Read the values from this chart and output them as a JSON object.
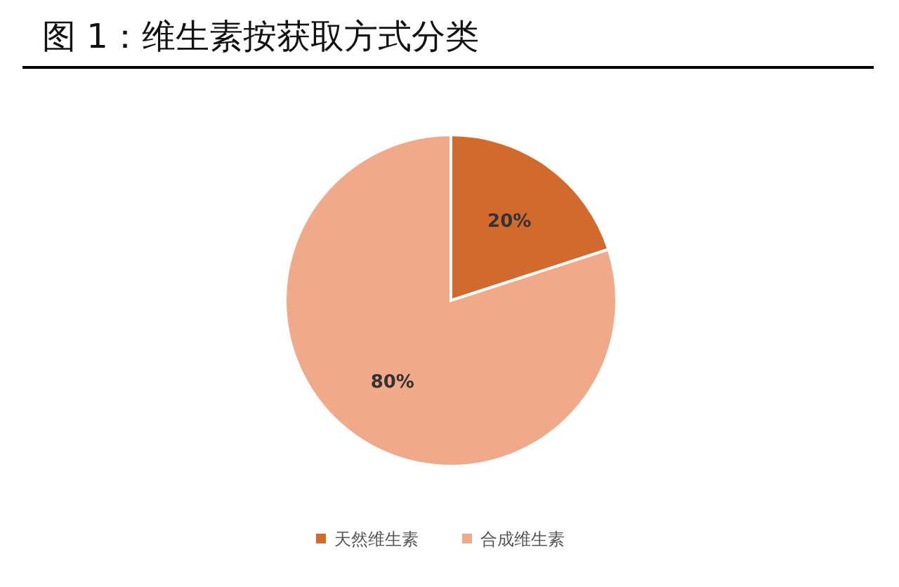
{
  "chart_data": {
    "type": "pie",
    "title": "图 1：维生素按获取方式分类",
    "categories": [
      "天然维生素",
      "合成维生素"
    ],
    "values": [
      20,
      80
    ],
    "colors": [
      "#d2692d",
      "#f0aa8a"
    ],
    "value_labels": [
      "20%",
      "80%"
    ],
    "legend": "bottom"
  }
}
